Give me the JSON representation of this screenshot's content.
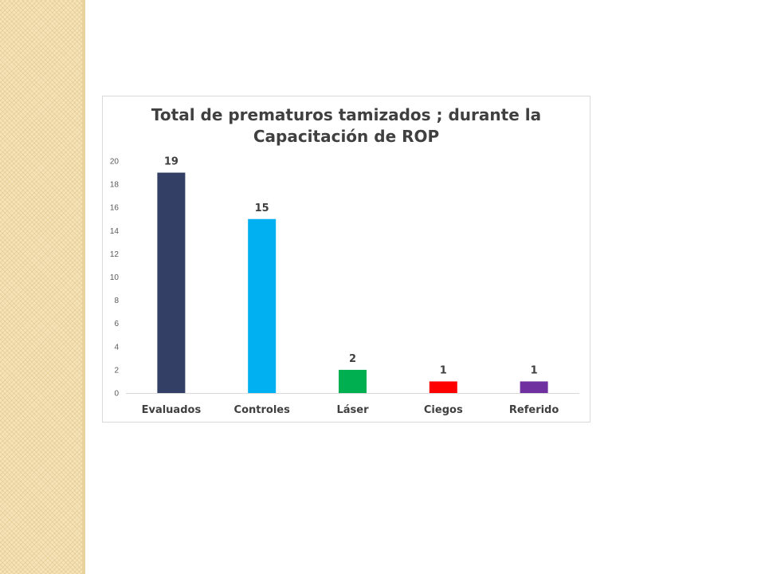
{
  "slide": {
    "background": "#ffffff",
    "band_color": "#f6e4b8"
  },
  "chart_data": {
    "type": "bar",
    "title_line1": "Total de prematuros tamizados ; durante la",
    "title_line2": "Capacitación de ROP",
    "title": "Total de prematuros tamizados ; durante la Capacitación de ROP",
    "categories": [
      "Evaluados",
      "Controles",
      "Láser",
      "Ciegos",
      "Referido"
    ],
    "values": [
      19,
      15,
      2,
      1,
      1
    ],
    "data_labels": [
      "19",
      "15",
      "2",
      "1",
      "1"
    ],
    "colors": [
      "#333f65",
      "#00b0f0",
      "#00b050",
      "#ff0000",
      "#7030a0"
    ],
    "ylim": [
      0,
      20
    ],
    "yticks": [
      0,
      2,
      4,
      6,
      8,
      10,
      12,
      14,
      16,
      18,
      20
    ],
    "grid": false,
    "legend": "none"
  }
}
